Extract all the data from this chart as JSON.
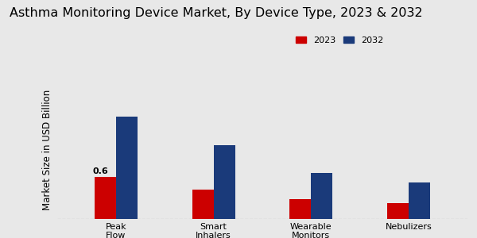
{
  "title": "Asthma Monitoring Device Market, By Device Type, 2023 & 2032",
  "ylabel": "Market Size in USD Billion",
  "categories": [
    "Peak\nFlow\nMeters",
    "Smart\nInhalers",
    "Wearable\nMonitors",
    "Nebulizers"
  ],
  "values_2023": [
    0.6,
    0.42,
    0.28,
    0.22
  ],
  "values_2032": [
    1.45,
    1.05,
    0.65,
    0.52
  ],
  "color_2023": "#cc0000",
  "color_2032": "#1a3a7a",
  "background_color": "#e8e8e8",
  "annotation_text": "0.6",
  "legend_labels": [
    "2023",
    "2032"
  ],
  "bar_width": 0.22,
  "title_fontsize": 11.5,
  "axis_label_fontsize": 8.5,
  "tick_fontsize": 8
}
